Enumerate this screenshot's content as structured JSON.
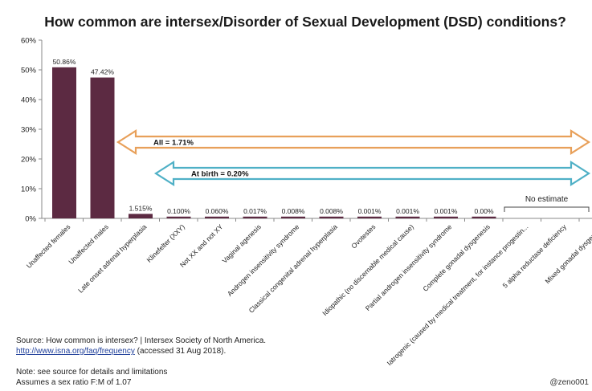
{
  "chart_data": {
    "type": "bar",
    "title": "How common are intersex/Disorder of Sexual Development (DSD) conditions?",
    "ylim": [
      0,
      60
    ],
    "y_ticks": [
      "0%",
      "10%",
      "20%",
      "30%",
      "40%",
      "50%",
      "60%"
    ],
    "categories": [
      "Unaffected females",
      "Unaffected males",
      "Late onset adrenal hyperplasia",
      "Klinefelter (XXY)",
      "Not XX and not XY",
      "Vaginal agenesis",
      "Androgen insensitivity syndrome",
      "Classical congenital adrenal hyperplasia",
      "Ovotestes",
      "Idiopathic (no discernable medical cause)",
      "Partial androgen insensitivity syndrome",
      "Complete gonadal dysgenesis",
      "Iatrogenic (caused by medical treatment, for instance progestin...",
      "5 alpha reductase deficiency",
      "Mixed gonadal dysgenesis"
    ],
    "values": [
      50.86,
      47.42,
      1.515,
      0.1,
      0.06,
      0.017,
      0.008,
      0.008,
      0.001,
      0.001,
      0.001,
      0.0,
      null,
      null,
      null
    ],
    "data_labels": [
      "50.86%",
      "47.42%",
      "1.515%",
      "0.100%",
      "0.060%",
      "0.017%",
      "0.008%",
      "0.008%",
      "0.001%",
      "0.001%",
      "0.001%",
      "0.00%",
      "",
      "",
      ""
    ],
    "bar_color": "#5c2a42",
    "arrow_all": {
      "label": "All = 1.71%",
      "value": 1.71,
      "color": "#e8a05a",
      "start_category": 0,
      "end_category": 14
    },
    "arrow_birth": {
      "label": "At birth = 0.20%",
      "value": 0.2,
      "color": "#4fb0c6",
      "start_category": 1,
      "end_category": 14
    },
    "no_estimate": {
      "label": "No estimate",
      "start_category": 12,
      "end_category": 14
    },
    "grid": false
  },
  "footer": {
    "source_line": "Source: How common is intersex? | Intersex Society of North America.",
    "link_text": "http://www.isna.org/faq/frequency",
    "accessed": " (accessed 31 Aug 2018).",
    "note": "Note: see source for details and limitations",
    "ratio": "Assumes a sex ratio F:M of 1.07",
    "credit": "@zeno001"
  }
}
